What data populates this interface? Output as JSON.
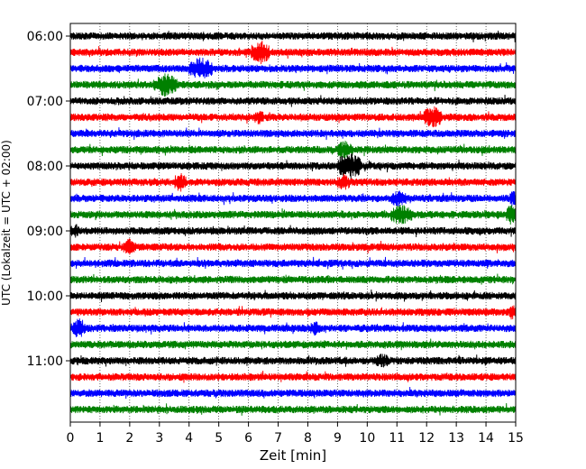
{
  "chart_data": {
    "type": "line",
    "title": "",
    "xlabel": "Zeit  [min]",
    "ylabel": "UTC (Lokalzeit = UTC + 02:00)",
    "xlim": [
      0,
      15
    ],
    "x_ticks": [
      0,
      1,
      2,
      3,
      4,
      5,
      6,
      7,
      8,
      9,
      10,
      11,
      12,
      13,
      14,
      15
    ],
    "y_ticks": [
      {
        "label": "06:00",
        "trace_index": 0
      },
      {
        "label": "07:00",
        "trace_index": 4
      },
      {
        "label": "08:00",
        "trace_index": 8
      },
      {
        "label": "09:00",
        "trace_index": 12
      },
      {
        "label": "10:00",
        "trace_index": 16
      },
      {
        "label": "11:00",
        "trace_index": 20
      }
    ],
    "trace_count": 24,
    "trace_interval_minutes": 15,
    "colors": [
      "#000000",
      "#ff0000",
      "#0000ff",
      "#008000"
    ],
    "grid": "vertical-dotted",
    "events": [
      {
        "trace_index": 1,
        "start_min": 6.1,
        "end_min": 6.7,
        "strength": 0.9
      },
      {
        "trace_index": 2,
        "start_min": 4.0,
        "end_min": 4.8,
        "strength": 0.8
      },
      {
        "trace_index": 3,
        "start_min": 2.8,
        "end_min": 3.6,
        "strength": 0.8
      },
      {
        "trace_index": 5,
        "start_min": 11.9,
        "end_min": 12.5,
        "strength": 0.8
      },
      {
        "trace_index": 5,
        "start_min": 6.2,
        "end_min": 6.5,
        "strength": 0.4
      },
      {
        "trace_index": 7,
        "start_min": 9.0,
        "end_min": 9.5,
        "strength": 0.6
      },
      {
        "trace_index": 8,
        "start_min": 9.0,
        "end_min": 9.8,
        "strength": 1.0
      },
      {
        "trace_index": 9,
        "start_min": 3.5,
        "end_min": 3.9,
        "strength": 0.6
      },
      {
        "trace_index": 9,
        "start_min": 9.0,
        "end_min": 9.4,
        "strength": 0.5
      },
      {
        "trace_index": 10,
        "start_min": 10.8,
        "end_min": 11.3,
        "strength": 0.5
      },
      {
        "trace_index": 10,
        "start_min": 14.8,
        "end_min": 15.0,
        "strength": 0.5
      },
      {
        "trace_index": 11,
        "start_min": 10.8,
        "end_min": 11.5,
        "strength": 0.7
      },
      {
        "trace_index": 11,
        "start_min": 14.7,
        "end_min": 15.0,
        "strength": 0.7
      },
      {
        "trace_index": 12,
        "start_min": 0.0,
        "end_min": 0.3,
        "strength": 0.4
      },
      {
        "trace_index": 13,
        "start_min": 1.8,
        "end_min": 2.2,
        "strength": 0.5
      },
      {
        "trace_index": 17,
        "start_min": 14.8,
        "end_min": 15.0,
        "strength": 0.5
      },
      {
        "trace_index": 18,
        "start_min": 0.1,
        "end_min": 0.5,
        "strength": 0.7
      },
      {
        "trace_index": 18,
        "start_min": 8.1,
        "end_min": 8.4,
        "strength": 0.4
      },
      {
        "trace_index": 20,
        "start_min": 10.3,
        "end_min": 10.7,
        "strength": 0.4
      }
    ]
  }
}
